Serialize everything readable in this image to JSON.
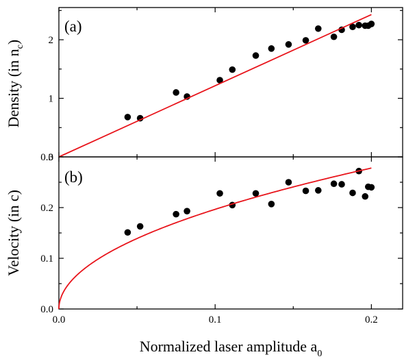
{
  "chart_data": [
    {
      "type": "scatter",
      "panel_label": "(a)",
      "ylabel": "Density (in n",
      "ylabel_sub": "c",
      "ylabel_close": ")",
      "xlim": [
        0,
        0.22
      ],
      "ylim": [
        0,
        2.55
      ],
      "yticks": [
        0,
        1,
        2
      ],
      "yticklabels": [
        "0",
        "1",
        "2"
      ],
      "show_xticklabels": false,
      "grid": false,
      "series": [
        {
          "kind": "points",
          "color": "#000000",
          "x": [
            0.044,
            0.052,
            0.075,
            0.082,
            0.103,
            0.111,
            0.126,
            0.136,
            0.147,
            0.158,
            0.166,
            0.176,
            0.181,
            0.188,
            0.192,
            0.196,
            0.198,
            0.2
          ],
          "y": [
            0.68,
            0.66,
            1.1,
            1.03,
            1.31,
            1.49,
            1.73,
            1.85,
            1.92,
            1.99,
            2.19,
            2.05,
            2.17,
            2.22,
            2.25,
            2.24,
            2.24,
            2.27
          ]
        },
        {
          "kind": "line",
          "color": "#e8141b",
          "x": [
            0,
            0.2
          ],
          "y": [
            0,
            2.43
          ]
        }
      ]
    },
    {
      "type": "scatter",
      "panel_label": "(b)",
      "ylabel": "Velocity  (in c)",
      "xlabel": "Normalized laser amplitude a",
      "xlabel_sub": "0",
      "xlim": [
        0,
        0.22
      ],
      "ylim": [
        0,
        0.3
      ],
      "xticks": [
        0,
        0.1,
        0.2
      ],
      "xticklabels": [
        "0.0",
        "0.1",
        "0.2"
      ],
      "yticks": [
        0,
        0.1,
        0.2,
        0.3
      ],
      "yticklabels": [
        "0.0",
        "0.1",
        "0.2",
        "0.3"
      ],
      "grid": false,
      "series": [
        {
          "kind": "points",
          "color": "#000000",
          "x": [
            0.044,
            0.052,
            0.075,
            0.082,
            0.103,
            0.111,
            0.126,
            0.136,
            0.147,
            0.158,
            0.166,
            0.176,
            0.181,
            0.188,
            0.192,
            0.196,
            0.198,
            0.2
          ],
          "y": [
            0.151,
            0.163,
            0.187,
            0.193,
            0.228,
            0.205,
            0.228,
            0.207,
            0.25,
            0.233,
            0.234,
            0.247,
            0.246,
            0.229,
            0.272,
            0.222,
            0.241,
            0.24
          ]
        },
        {
          "kind": "curve",
          "function": "sqrt",
          "color": "#e8141b",
          "x_range": [
            0,
            0.2
          ],
          "y_at_end": 0.278
        }
      ]
    }
  ]
}
